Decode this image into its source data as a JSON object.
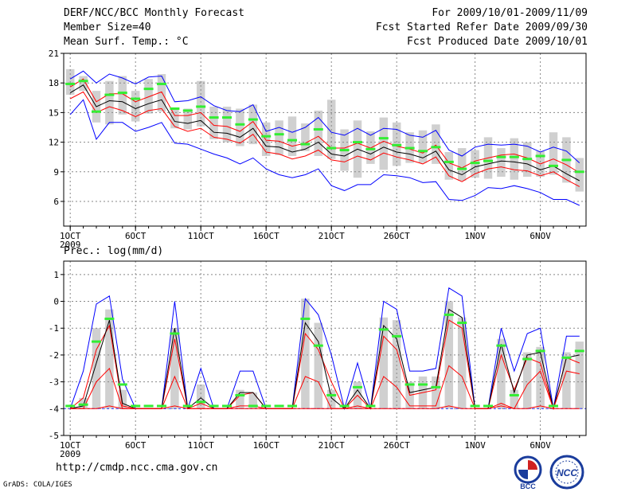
{
  "header": {
    "title": "DERF/NCC/BCC Monthly Forecast",
    "member_size": "Member Size=40",
    "variable": "Mean Surf. Temp.: °C",
    "forecast_period": "For 2009/10/01-2009/11/09",
    "started": "Fcst Started Refer Date 2009/09/30",
    "produced": "Fcst Produced Date 2009/10/01"
  },
  "footer": {
    "url": "http://cmdp.ncc.cma.gov.cn",
    "grads": "GrADS: COLA/IGES",
    "logo_bcc": "BCC",
    "logo_ncc": "NCC"
  },
  "colors": {
    "ensemble_mean": "#000000",
    "spread": "#ff0000",
    "extreme": "#0000ff",
    "climatology": "#33ee33",
    "bar": "#d0d0d0",
    "grid": "#888888"
  },
  "chart_data": [
    {
      "type": "line",
      "title": "Mean Surf. Temp.: °C",
      "ylim": [
        3.5,
        21
      ],
      "yticks": [
        6,
        9,
        12,
        15,
        18,
        21
      ],
      "xlim": [
        0.5,
        40.5
      ],
      "xtick_labels": [
        {
          "day": 1,
          "label": "1OCT"
        },
        {
          "day": 6,
          "label": "6OCT"
        },
        {
          "day": 11,
          "label": "11OCT"
        },
        {
          "day": 16,
          "label": "16OCT"
        },
        {
          "day": 21,
          "label": "21OCT"
        },
        {
          "day": 26,
          "label": "26OCT"
        },
        {
          "day": 32,
          "label": "1NOV"
        },
        {
          "day": 37,
          "label": "6NOV"
        }
      ],
      "year_label": "2009",
      "x": [
        1,
        2,
        3,
        4,
        5,
        6,
        7,
        8,
        9,
        10,
        11,
        12,
        13,
        14,
        15,
        16,
        17,
        18,
        19,
        20,
        21,
        22,
        23,
        24,
        25,
        26,
        27,
        28,
        29,
        30,
        31,
        32,
        33,
        34,
        35,
        36,
        37,
        38,
        39,
        40
      ],
      "series": [
        {
          "name": "max",
          "color": "#0000ff",
          "values": [
            18.4,
            19.2,
            18.0,
            18.9,
            18.5,
            17.9,
            18.6,
            18.7,
            16.1,
            16.2,
            16.6,
            15.7,
            15.2,
            15.1,
            15.8,
            13.1,
            13.5,
            13.0,
            13.5,
            14.5,
            13.0,
            12.7,
            13.4,
            12.7,
            13.4,
            13.3,
            12.7,
            12.5,
            13.2,
            11.2,
            10.6,
            11.5,
            11.8,
            11.7,
            11.8,
            11.6,
            11.0,
            11.5,
            11.1,
            9.9
          ]
        },
        {
          "name": "upper",
          "color": "#ff0000",
          "values": [
            17.6,
            18.4,
            16.1,
            16.9,
            16.9,
            16.1,
            16.6,
            17.1,
            14.7,
            14.7,
            15.0,
            13.7,
            13.6,
            13.1,
            14.1,
            12.2,
            12.1,
            11.6,
            11.9,
            12.6,
            11.4,
            11.4,
            11.9,
            11.4,
            12.1,
            11.6,
            11.3,
            10.9,
            11.7,
            9.9,
            9.4,
            10.1,
            10.4,
            10.7,
            10.8,
            10.4,
            9.8,
            10.3,
            9.7,
            8.9
          ]
        },
        {
          "name": "mean",
          "color": "#000000",
          "values": [
            17.0,
            17.8,
            15.6,
            16.2,
            16.1,
            15.4,
            15.9,
            16.3,
            14.1,
            13.9,
            14.2,
            13.0,
            12.9,
            12.5,
            13.4,
            11.6,
            11.5,
            11.0,
            11.3,
            12.0,
            10.8,
            10.6,
            11.3,
            10.8,
            11.5,
            11.0,
            10.8,
            10.4,
            11.1,
            9.2,
            8.7,
            9.5,
            9.8,
            10.1,
            10.0,
            9.8,
            9.2,
            9.6,
            8.8,
            8.1
          ]
        },
        {
          "name": "lower",
          "color": "#ff0000",
          "values": [
            16.4,
            17.1,
            15.0,
            15.6,
            15.2,
            14.6,
            15.2,
            15.4,
            13.6,
            13.1,
            13.4,
            12.5,
            12.3,
            11.9,
            12.8,
            11.0,
            10.8,
            10.3,
            10.6,
            11.2,
            10.2,
            10.0,
            10.6,
            10.2,
            10.9,
            10.5,
            10.2,
            9.8,
            10.5,
            8.6,
            8.0,
            8.8,
            9.3,
            9.5,
            9.2,
            9.1,
            8.6,
            9.0,
            8.2,
            7.5
          ]
        },
        {
          "name": "min",
          "color": "#0000ff",
          "values": [
            14.8,
            16.3,
            12.3,
            14.0,
            14.0,
            13.1,
            13.5,
            14.0,
            11.9,
            11.8,
            11.3,
            10.8,
            10.4,
            9.8,
            10.4,
            9.3,
            8.7,
            8.4,
            8.7,
            9.3,
            7.6,
            7.1,
            7.7,
            7.7,
            8.7,
            8.6,
            8.4,
            7.9,
            8.0,
            6.2,
            6.1,
            6.6,
            7.4,
            7.3,
            7.6,
            7.3,
            6.9,
            6.2,
            6.2,
            5.6
          ]
        }
      ],
      "climatology": [
        17.9,
        18.2,
        15.1,
        16.8,
        17.0,
        16.4,
        17.4,
        17.9,
        15.4,
        15.2,
        15.6,
        14.5,
        14.5,
        13.8,
        14.3,
        12.6,
        12.8,
        12.2,
        11.8,
        13.3,
        11.4,
        11.2,
        12.0,
        11.3,
        12.4,
        11.7,
        11.4,
        11.1,
        11.5,
        10.0,
        9.3,
        9.9,
        10.1,
        10.5,
        10.5,
        10.3,
        10.6,
        9.6,
        10.2,
        9.0
      ],
      "bars": [
        [
          16.8,
          19.4
        ],
        [
          17.2,
          18.7
        ],
        [
          14.0,
          17.2
        ],
        [
          13.8,
          18.2
        ],
        [
          14.8,
          18.7
        ],
        [
          14.1,
          17.2
        ],
        [
          14.9,
          18.4
        ],
        [
          15.1,
          18.9
        ],
        [
          13.4,
          15.5
        ],
        [
          13.3,
          15.4
        ],
        [
          13.6,
          18.2
        ],
        [
          12.3,
          15.6
        ],
        [
          12.0,
          15.6
        ],
        [
          11.6,
          15.4
        ],
        [
          11.8,
          15.8
        ],
        [
          10.6,
          14.0
        ],
        [
          10.7,
          14.2
        ],
        [
          10.6,
          14.6
        ],
        [
          11.1,
          13.9
        ],
        [
          10.6,
          15.2
        ],
        [
          10.3,
          16.3
        ],
        [
          9.1,
          13.3
        ],
        [
          8.4,
          14.2
        ],
        [
          9.8,
          13.1
        ],
        [
          9.2,
          14.5
        ],
        [
          9.6,
          14.0
        ],
        [
          9.9,
          13.0
        ],
        [
          9.9,
          13.2
        ],
        [
          9.8,
          13.8
        ],
        [
          8.2,
          11.0
        ],
        [
          8.1,
          11.4
        ],
        [
          8.4,
          11.2
        ],
        [
          8.3,
          12.5
        ],
        [
          8.5,
          11.4
        ],
        [
          8.2,
          12.4
        ],
        [
          8.5,
          12.0
        ],
        [
          8.5,
          11.1
        ],
        [
          8.7,
          13.0
        ],
        [
          7.9,
          12.5
        ],
        [
          7.0,
          10.4
        ]
      ]
    },
    {
      "type": "line",
      "title": "Prec.: log(mm/d)",
      "ylim": [
        -5,
        1.5
      ],
      "yticks": [
        -5,
        -4,
        -3,
        -2,
        -1,
        0,
        1
      ],
      "xlim": [
        0.5,
        40.5
      ],
      "xtick_labels": [
        {
          "day": 1,
          "label": "1OCT"
        },
        {
          "day": 6,
          "label": "6OCT"
        },
        {
          "day": 11,
          "label": "11OCT"
        },
        {
          "day": 16,
          "label": "16OCT"
        },
        {
          "day": 21,
          "label": "21OCT"
        },
        {
          "day": 26,
          "label": "26OCT"
        },
        {
          "day": 32,
          "label": "1NOV"
        },
        {
          "day": 37,
          "label": "6NOV"
        }
      ],
      "year_label": "2009",
      "baseline": -4,
      "x": [
        1,
        2,
        3,
        4,
        5,
        6,
        7,
        8,
        9,
        10,
        11,
        12,
        13,
        14,
        15,
        16,
        17,
        18,
        19,
        20,
        21,
        22,
        23,
        24,
        25,
        26,
        27,
        28,
        29,
        30,
        31,
        32,
        33,
        34,
        35,
        36,
        37,
        38,
        39,
        40
      ],
      "series": [
        {
          "name": "max",
          "color": "#0000ff",
          "values": [
            -4,
            -2.6,
            -0.1,
            0.2,
            -2.9,
            -4,
            -4,
            -4,
            0.0,
            -4,
            -2.5,
            -4,
            -4,
            -2.6,
            -2.6,
            -4,
            -4,
            -4,
            0.1,
            -0.5,
            -2.0,
            -4,
            -2.3,
            -4,
            0.0,
            -0.3,
            -2.6,
            -2.6,
            -2.5,
            0.5,
            0.2,
            -4,
            -4,
            -1.0,
            -2.6,
            -1.2,
            -1.0,
            -4,
            -1.3,
            -1.3
          ]
        },
        {
          "name": "upper",
          "color": "#ff0000",
          "values": [
            -4,
            -3.6,
            -1.8,
            -0.9,
            -3.9,
            -4,
            -4,
            -4,
            -1.4,
            -4,
            -3.8,
            -4,
            -4,
            -3.5,
            -3.4,
            -4,
            -4,
            -4,
            -1.2,
            -1.8,
            -3.0,
            -4,
            -3.5,
            -4,
            -1.3,
            -1.8,
            -3.5,
            -3.4,
            -3.3,
            -0.7,
            -1.0,
            -4,
            -4,
            -2.0,
            -3.3,
            -2.1,
            -2.3,
            -4,
            -2.1,
            -2.3
          ]
        },
        {
          "name": "mean",
          "color": "#000000",
          "values": [
            -4,
            -3.9,
            -2.3,
            -0.7,
            -3.8,
            -4,
            -4,
            -4,
            -1.0,
            -4,
            -3.6,
            -4,
            -4,
            -3.4,
            -3.4,
            -4,
            -4,
            -4,
            -0.8,
            -1.5,
            -3.6,
            -4,
            -3.3,
            -4,
            -0.9,
            -1.4,
            -3.4,
            -3.3,
            -3.2,
            -0.3,
            -0.6,
            -4,
            -4,
            -1.6,
            -3.4,
            -2.0,
            -1.9,
            -4,
            -2.1,
            -2.0
          ]
        },
        {
          "name": "lower",
          "color": "#ff0000",
          "values": [
            -4,
            -4,
            -3.0,
            -2.5,
            -4,
            -4,
            -4,
            -4,
            -2.8,
            -4,
            -4,
            -4,
            -4,
            -3.9,
            -3.9,
            -4,
            -4,
            -4,
            -2.8,
            -3.0,
            -4,
            -4,
            -3.9,
            -4,
            -2.8,
            -3.2,
            -3.9,
            -3.9,
            -3.9,
            -2.4,
            -2.8,
            -4,
            -4,
            -3.8,
            -4,
            -3.1,
            -2.6,
            -4,
            -2.6,
            -2.7
          ]
        },
        {
          "name": "min",
          "color": "#ff0000",
          "values": [
            -4,
            -4,
            -4,
            -3.9,
            -4,
            -4,
            -4,
            -4,
            -3.9,
            -4,
            -4,
            -4,
            -4,
            -4,
            -4,
            -4,
            -4,
            -4,
            -4,
            -4,
            -4,
            -4,
            -4,
            -4,
            -4,
            -4,
            -4,
            -4,
            -4,
            -3.9,
            -4,
            -4,
            -4,
            -3.9,
            -4,
            -4,
            -3.9,
            -4,
            -4,
            -4
          ]
        }
      ],
      "climatology": [
        -3.9,
        -3.85,
        -1.5,
        -0.65,
        -3.1,
        -3.9,
        -3.9,
        -3.9,
        -1.2,
        -3.9,
        -3.75,
        -3.9,
        -3.9,
        -3.5,
        -3.9,
        -3.9,
        -3.9,
        -3.9,
        -0.65,
        -1.65,
        -3.5,
        -3.9,
        -3.2,
        -3.9,
        -1.05,
        -1.3,
        -3.1,
        -3.1,
        -3.2,
        -0.5,
        -0.8,
        -3.9,
        -3.9,
        -1.65,
        -3.5,
        -2.15,
        -1.85,
        -3.9,
        -2.1,
        -1.85
      ],
      "bars": [
        [
          -4,
          -4
        ],
        [
          -4,
          -3.6
        ],
        [
          -4,
          -1.0
        ],
        [
          -4,
          -0.3
        ],
        [
          -4,
          -3.3
        ],
        [
          -4,
          -4
        ],
        [
          -4,
          -4
        ],
        [
          -4,
          -4
        ],
        [
          -4,
          -1.0
        ],
        [
          -4,
          -4
        ],
        [
          -4,
          -3.1
        ],
        [
          -4,
          -4
        ],
        [
          -4,
          -4
        ],
        [
          -4,
          -3.3
        ],
        [
          -4,
          -3.4
        ],
        [
          -4,
          -4
        ],
        [
          -4,
          -4
        ],
        [
          -4,
          -4
        ],
        [
          -4,
          0.1
        ],
        [
          -4,
          -0.8
        ],
        [
          -4,
          -3.3
        ],
        [
          -4,
          -4
        ],
        [
          -4,
          -3.0
        ],
        [
          -4,
          -4
        ],
        [
          -4,
          -0.6
        ],
        [
          -4,
          -0.7
        ],
        [
          -4,
          -3.0
        ],
        [
          -4,
          -2.8
        ],
        [
          -4,
          -2.8
        ],
        [
          -4,
          0.0
        ],
        [
          -4,
          -0.6
        ],
        [
          -4,
          -4
        ],
        [
          -4,
          -4
        ],
        [
          -4,
          -1.4
        ],
        [
          -4,
          -3.3
        ],
        [
          -4,
          -1.9
        ],
        [
          -4,
          -1.7
        ],
        [
          -4,
          -4
        ],
        [
          -4,
          -1.9
        ],
        [
          -4,
          -1.5
        ]
      ]
    }
  ]
}
